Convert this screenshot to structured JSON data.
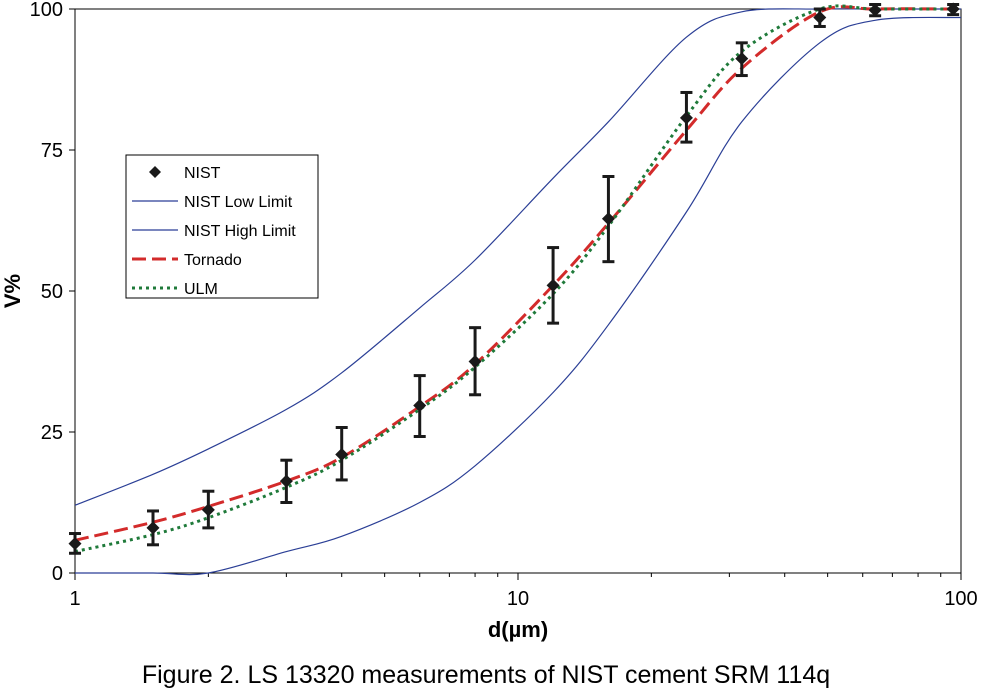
{
  "chart_data": {
    "type": "line",
    "x_scale": "log",
    "xlim": [
      1,
      100
    ],
    "ylim": [
      0,
      100
    ],
    "xlabel": "d(µm)",
    "ylabel": "V%",
    "x_ticks": [
      1,
      10,
      100
    ],
    "x_tick_labels": [
      "1",
      "10",
      "100"
    ],
    "y_ticks": [
      0,
      25,
      50,
      75,
      100
    ],
    "y_tick_labels": [
      "0",
      "25",
      "50",
      "75",
      "100"
    ],
    "grid": false,
    "legend_position": "left",
    "series": [
      {
        "name": "NIST",
        "kind": "points-with-error",
        "color": "#1a1a1a",
        "points": [
          {
            "x": 1,
            "y": 5.2,
            "lo": 3.5,
            "hi": 7.0
          },
          {
            "x": 1.5,
            "y": 8.0,
            "lo": 5.0,
            "hi": 11.0
          },
          {
            "x": 2,
            "y": 11.2,
            "lo": 8.0,
            "hi": 14.5
          },
          {
            "x": 3,
            "y": 16.3,
            "lo": 12.5,
            "hi": 20.0
          },
          {
            "x": 4,
            "y": 21.0,
            "lo": 16.5,
            "hi": 25.8
          },
          {
            "x": 6,
            "y": 29.7,
            "lo": 24.2,
            "hi": 35.0
          },
          {
            "x": 8,
            "y": 37.5,
            "lo": 31.6,
            "hi": 43.5
          },
          {
            "x": 12,
            "y": 51.0,
            "lo": 44.3,
            "hi": 57.7
          },
          {
            "x": 16,
            "y": 62.8,
            "lo": 55.2,
            "hi": 70.3
          },
          {
            "x": 24,
            "y": 80.7,
            "lo": 76.4,
            "hi": 85.2
          },
          {
            "x": 32,
            "y": 91.2,
            "lo": 88.2,
            "hi": 94.0
          },
          {
            "x": 48,
            "y": 98.5,
            "lo": 96.9,
            "hi": 100.0
          },
          {
            "x": 64,
            "y": 99.8,
            "lo": 98.8,
            "hi": 100.8
          },
          {
            "x": 96,
            "y": 100.0,
            "lo": 99.0,
            "hi": 100.8
          }
        ]
      },
      {
        "name": "NIST Low Limit",
        "kind": "line",
        "color": "#2b3f96",
        "x": [
          1,
          1.5,
          2,
          3,
          4,
          6,
          8,
          12,
          16,
          24,
          32,
          48,
          64,
          100
        ],
        "y": [
          0.0,
          0.0,
          0.0,
          3.8,
          6.5,
          12.5,
          19.0,
          32.0,
          44.0,
          64.0,
          80.0,
          94.0,
          98.0,
          98.5
        ]
      },
      {
        "name": "NIST High Limit",
        "kind": "line",
        "color": "#2b3f96",
        "x": [
          1,
          1.5,
          2,
          3,
          4,
          6,
          8,
          12,
          16,
          24,
          32,
          48,
          64,
          100
        ],
        "y": [
          12.0,
          17.5,
          22.0,
          29.0,
          35.5,
          47.0,
          55.5,
          70.0,
          80.0,
          95.0,
          99.5,
          100.0,
          100.0,
          100.0
        ]
      },
      {
        "name": "Tornado",
        "kind": "line",
        "style": "dashed",
        "color": "#d32b2b",
        "x": [
          1,
          1.5,
          2,
          3,
          4,
          6,
          8,
          12,
          16,
          24,
          32,
          48,
          64,
          96
        ],
        "y": [
          5.8,
          9.0,
          11.8,
          16.3,
          20.5,
          29.5,
          37.0,
          51.0,
          62.0,
          78.5,
          89.5,
          99.5,
          100.0,
          100.0
        ]
      },
      {
        "name": "ULM",
        "kind": "line",
        "style": "dotted",
        "color": "#1f7a3a",
        "x": [
          1,
          1.5,
          2,
          3,
          4,
          6,
          8,
          12,
          16,
          24,
          32,
          48,
          64,
          96
        ],
        "y": [
          3.8,
          6.8,
          9.8,
          15.2,
          20.0,
          29.0,
          36.5,
          49.5,
          61.5,
          81.0,
          92.5,
          100.0,
          100.0,
          100.0
        ]
      }
    ],
    "caption": "Figure 2. LS 13320 measurements of NIST cement SRM 114q"
  }
}
